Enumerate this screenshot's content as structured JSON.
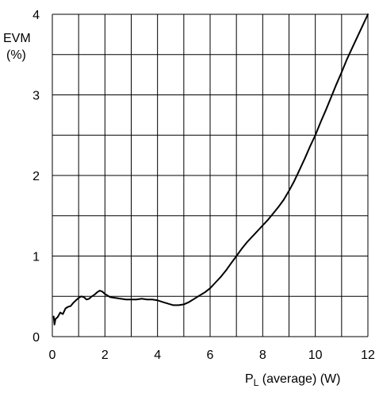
{
  "chart_data": {
    "type": "line",
    "title": "",
    "ylabel_line1": "EVM",
    "ylabel_line2": "(%)",
    "xlabel_main": "P",
    "xlabel_sub": "L",
    "xlabel_rest": " (average) (W)",
    "xlim": [
      0,
      12
    ],
    "ylim": [
      0,
      4
    ],
    "x_ticks": [
      0,
      2,
      4,
      6,
      8,
      10,
      12
    ],
    "y_ticks": [
      0,
      1,
      2,
      3,
      4
    ],
    "x_gridlines": [
      0,
      1,
      2,
      3,
      4,
      5,
      6,
      7,
      8,
      9,
      10,
      11,
      12
    ],
    "y_gridlines": [
      0,
      0.5,
      1,
      1.5,
      2,
      2.5,
      3,
      3.5,
      4
    ],
    "grid": true,
    "line_color": "#000000",
    "series": [
      {
        "x": [
          0.05,
          0.08,
          0.12,
          0.2,
          0.3,
          0.4,
          0.5,
          0.6,
          0.7,
          0.8,
          0.9,
          1.0,
          1.1,
          1.2,
          1.3,
          1.4,
          1.5,
          1.6,
          1.7,
          1.8,
          1.9,
          2.0,
          2.2,
          2.4,
          2.6,
          2.8,
          3.0,
          3.2,
          3.4,
          3.6,
          3.8,
          4.0,
          4.2,
          4.4,
          4.6,
          4.8,
          5.0,
          5.2,
          5.4,
          5.6,
          5.8,
          6.0,
          6.2,
          6.4,
          6.6,
          6.8,
          7.0,
          7.2,
          7.4,
          7.6,
          7.8,
          8.0,
          8.2,
          8.4,
          8.6,
          8.8,
          9.0,
          9.2,
          9.4,
          9.6,
          9.8,
          10.0,
          10.2,
          10.4,
          10.6,
          10.8,
          11.0,
          11.2,
          11.4,
          11.6,
          11.8,
          12.0
        ],
        "y": [
          0.25,
          0.15,
          0.22,
          0.24,
          0.3,
          0.28,
          0.35,
          0.37,
          0.38,
          0.42,
          0.45,
          0.48,
          0.5,
          0.49,
          0.46,
          0.47,
          0.5,
          0.52,
          0.55,
          0.57,
          0.56,
          0.53,
          0.49,
          0.48,
          0.47,
          0.46,
          0.46,
          0.46,
          0.47,
          0.46,
          0.46,
          0.45,
          0.43,
          0.41,
          0.39,
          0.39,
          0.4,
          0.43,
          0.47,
          0.51,
          0.55,
          0.6,
          0.67,
          0.74,
          0.82,
          0.91,
          1.0,
          1.09,
          1.17,
          1.24,
          1.31,
          1.38,
          1.45,
          1.53,
          1.61,
          1.7,
          1.81,
          1.93,
          2.07,
          2.21,
          2.36,
          2.5,
          2.66,
          2.81,
          2.97,
          3.13,
          3.28,
          3.44,
          3.58,
          3.72,
          3.86,
          4.0
        ]
      }
    ]
  }
}
